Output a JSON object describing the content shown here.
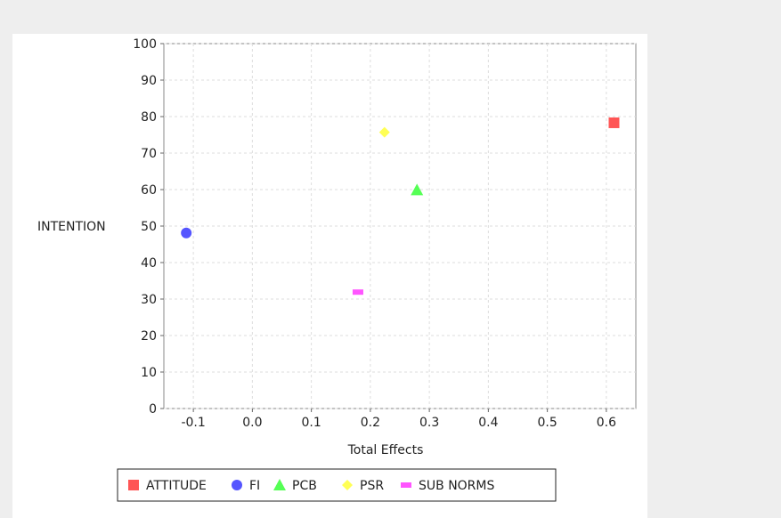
{
  "chart_data": {
    "type": "scatter",
    "title": "",
    "xlabel": "Total Effects",
    "ylabel": "INTENTION",
    "xlim": [
      -0.15,
      0.65
    ],
    "ylim": [
      0,
      100
    ],
    "x_ticks": [
      -0.1,
      0.0,
      0.1,
      0.2,
      0.3,
      0.4,
      0.5,
      0.6
    ],
    "x_tick_labels": [
      "-0.1",
      "0.0",
      "0.1",
      "0.2",
      "0.3",
      "0.4",
      "0.5",
      "0.6"
    ],
    "y_ticks": [
      0,
      10,
      20,
      30,
      40,
      50,
      60,
      70,
      80,
      90,
      100
    ],
    "y_tick_labels": [
      "0",
      "10",
      "20",
      "30",
      "40",
      "50",
      "60",
      "70",
      "80",
      "90",
      "100"
    ],
    "grid": true,
    "legend_position": "bottom",
    "series": [
      {
        "name": "ATTITUDE",
        "marker": "square",
        "color": "#ff5555",
        "points": [
          {
            "x": 0.613,
            "y": 78.3
          }
        ]
      },
      {
        "name": "FI",
        "marker": "circle",
        "color": "#5555ff",
        "points": [
          {
            "x": -0.112,
            "y": 48.1
          }
        ]
      },
      {
        "name": "PCB",
        "marker": "triangle",
        "color": "#55ff55",
        "points": [
          {
            "x": 0.279,
            "y": 59.9
          }
        ]
      },
      {
        "name": "PSR",
        "marker": "diamond",
        "color": "#ffff55",
        "points": [
          {
            "x": 0.224,
            "y": 75.7
          }
        ]
      },
      {
        "name": "SUB NORMS",
        "marker": "rect-flat",
        "color": "#ff55ff",
        "points": [
          {
            "x": 0.179,
            "y": 31.9
          }
        ]
      }
    ]
  }
}
